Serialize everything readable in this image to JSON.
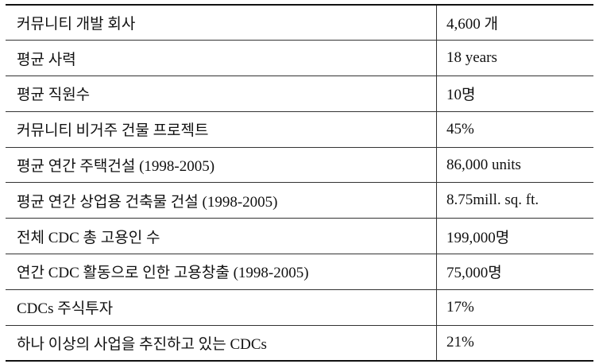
{
  "table": {
    "rows": [
      [
        "커뮤니티 개발 회사",
        "4,600 개"
      ],
      [
        "평균 사력",
        "18 years"
      ],
      [
        "평균 직원수",
        "10명"
      ],
      [
        "커뮤니티 비거주 건물 프로젝트",
        "45%"
      ],
      [
        "평균 연간 주택건설 (1998-2005)",
        "86,000 units"
      ],
      [
        "평균 연간 상업용 건축물 건설 (1998-2005)",
        "8.75mill. sq. ft."
      ],
      [
        "전체 CDC 총 고용인 수",
        "199,000명"
      ],
      [
        "연간 CDC 활동으로 인한 고용창출 (1998-2005)",
        "75,000명"
      ],
      [
        "CDCs 주식투자",
        "17%"
      ],
      [
        "하나 이상의 사업을 추진하고 있는 CDCs",
        "21%"
      ]
    ]
  }
}
